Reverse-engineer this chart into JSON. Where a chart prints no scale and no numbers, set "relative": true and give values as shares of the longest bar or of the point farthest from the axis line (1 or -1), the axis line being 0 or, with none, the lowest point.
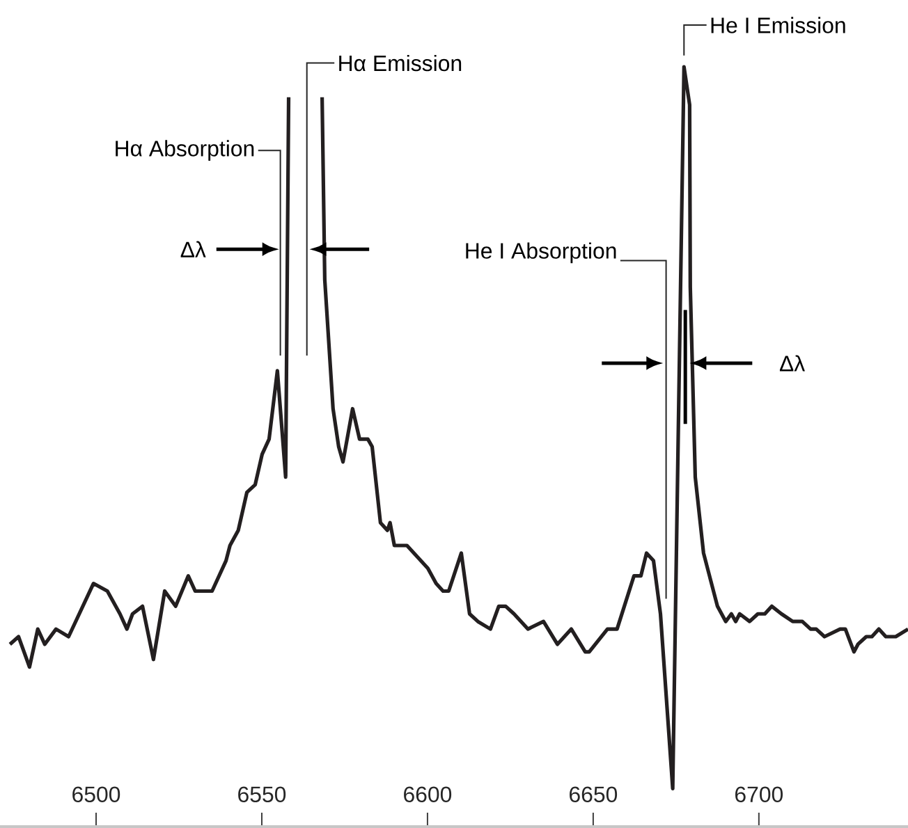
{
  "chart_data": {
    "type": "line",
    "relative": true,
    "color": "#231f20",
    "x": [
      6474.0,
      6476.6,
      6479.9,
      6482.4,
      6484.5,
      6487.9,
      6491.7,
      6499.2,
      6503.4,
      6507.2,
      6509.3,
      6511.0,
      6514.0,
      6517.3,
      6520.7,
      6524.0,
      6527.8,
      6529.9,
      6532.9,
      6535.0,
      6539.2,
      6540.4,
      6542.9,
      6545.5,
      6548.0,
      6550.1,
      6552.2,
      6554.7,
      6557.2,
      6558.1,
      6563.0,
      6568.2,
      6569.0,
      6571.5,
      6573.2,
      6574.5,
      6577.4,
      6579.5,
      6582.0,
      6583.3,
      6585.8,
      6587.9,
      6588.7,
      6590.0,
      6593.8,
      6600.1,
      6602.6,
      6604.7,
      6606.4,
      6610.2,
      6612.7,
      6615.2,
      6619.0,
      6621.5,
      6623.6,
      6626.1,
      6630.3,
      6635.0,
      6639.2,
      6643.4,
      6647.6,
      6648.8,
      6654.3,
      6657.2,
      6662.3,
      6664.4,
      6666.1,
      6668.2,
      6670.3,
      6674.0,
      6677.4,
      6679.1,
      6679.3,
      6680.8,
      6683.3,
      6687.5,
      6690.0,
      6691.7,
      6693.0,
      6694.2,
      6697.2,
      6699.7,
      6701.8,
      6703.9,
      6706.8,
      6710.2,
      6713.1,
      6715.6,
      6717.3,
      6719.8,
      6724.5,
      6726.1,
      6728.7,
      6729.9,
      6732.4,
      6734.1,
      6736.2,
      6738.3,
      6740.0,
      6741.3,
      6745.0
    ],
    "values": [
      0.24,
      0.25,
      0.21,
      0.26,
      0.24,
      0.26,
      0.25,
      0.32,
      0.31,
      0.28,
      0.26,
      0.28,
      0.29,
      0.22,
      0.31,
      0.29,
      0.33,
      0.31,
      0.31,
      0.31,
      0.35,
      0.37,
      0.39,
      0.44,
      0.45,
      0.49,
      0.51,
      0.6,
      0.46,
      0.96,
      null,
      0.96,
      0.72,
      0.55,
      0.5,
      0.48,
      0.55,
      0.51,
      0.51,
      0.5,
      0.4,
      0.39,
      0.4,
      0.37,
      0.37,
      0.34,
      0.32,
      0.31,
      0.31,
      0.36,
      0.28,
      0.27,
      0.26,
      0.29,
      0.29,
      0.28,
      0.26,
      0.27,
      0.24,
      0.26,
      0.23,
      0.23,
      0.26,
      0.26,
      0.33,
      0.33,
      0.36,
      0.35,
      0.28,
      0.05,
      1.0,
      0.95,
      0.71,
      0.46,
      0.36,
      0.29,
      0.27,
      0.28,
      0.27,
      0.28,
      0.27,
      0.28,
      0.28,
      0.29,
      0.28,
      0.27,
      0.27,
      0.26,
      0.26,
      0.25,
      0.26,
      0.26,
      0.23,
      0.24,
      0.25,
      0.25,
      0.26,
      0.25,
      0.25,
      0.25,
      0.26
    ],
    "xlim": [
      6471,
      6745
    ],
    "xticks": [
      6500,
      6550,
      6600,
      6650,
      6700
    ],
    "annotations": [
      {
        "text": "Hα Absorption",
        "x": 6555.6,
        "y": 0.62
      },
      "Hα Emission",
      {
        "text": "He I Absorption",
        "x": 6672.0,
        "y": 0.3
      },
      "He I Emission",
      "Δλ",
      "Δλ"
    ]
  }
}
